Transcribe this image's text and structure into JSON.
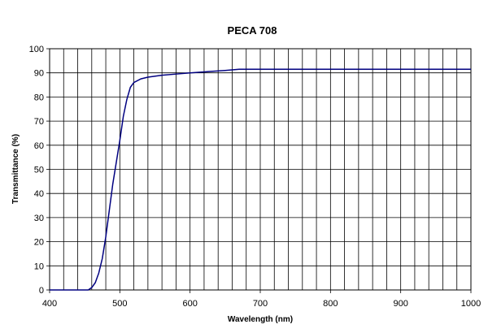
{
  "chart_data": {
    "type": "line",
    "title": "PECA 708",
    "x_label": "Wavelength (nm)",
    "y_label": "Transmittance (%)",
    "x": [
      400,
      420,
      440,
      455,
      460,
      465,
      470,
      475,
      480,
      485,
      490,
      495,
      500,
      505,
      510,
      515,
      520,
      530,
      540,
      560,
      580,
      600,
      650,
      670,
      700,
      800,
      900,
      1000
    ],
    "series": [
      {
        "name": "PECA 708",
        "color": "#000080",
        "values": [
          0,
          0,
          0,
          0,
          1,
          3,
          7,
          13,
          22,
          33,
          44,
          53,
          62,
          72,
          79,
          84,
          86,
          87.5,
          88.2,
          89,
          89.5,
          90,
          91,
          91.5,
          91.5,
          91.5,
          91.5,
          91.5
        ]
      }
    ],
    "xlim": [
      400,
      1000
    ],
    "xticks": [
      400,
      500,
      600,
      700,
      800,
      900,
      1000
    ],
    "x_minor_ticks": [
      420,
      440,
      460,
      480,
      520,
      540,
      560,
      580,
      620,
      640,
      660,
      680,
      720,
      740,
      760,
      780,
      820,
      840,
      860,
      880,
      920,
      940,
      960,
      980
    ],
    "ylim": [
      0,
      100
    ],
    "yticks": [
      0,
      10,
      20,
      30,
      40,
      50,
      60,
      70,
      80,
      90,
      100
    ],
    "grid": true
  }
}
